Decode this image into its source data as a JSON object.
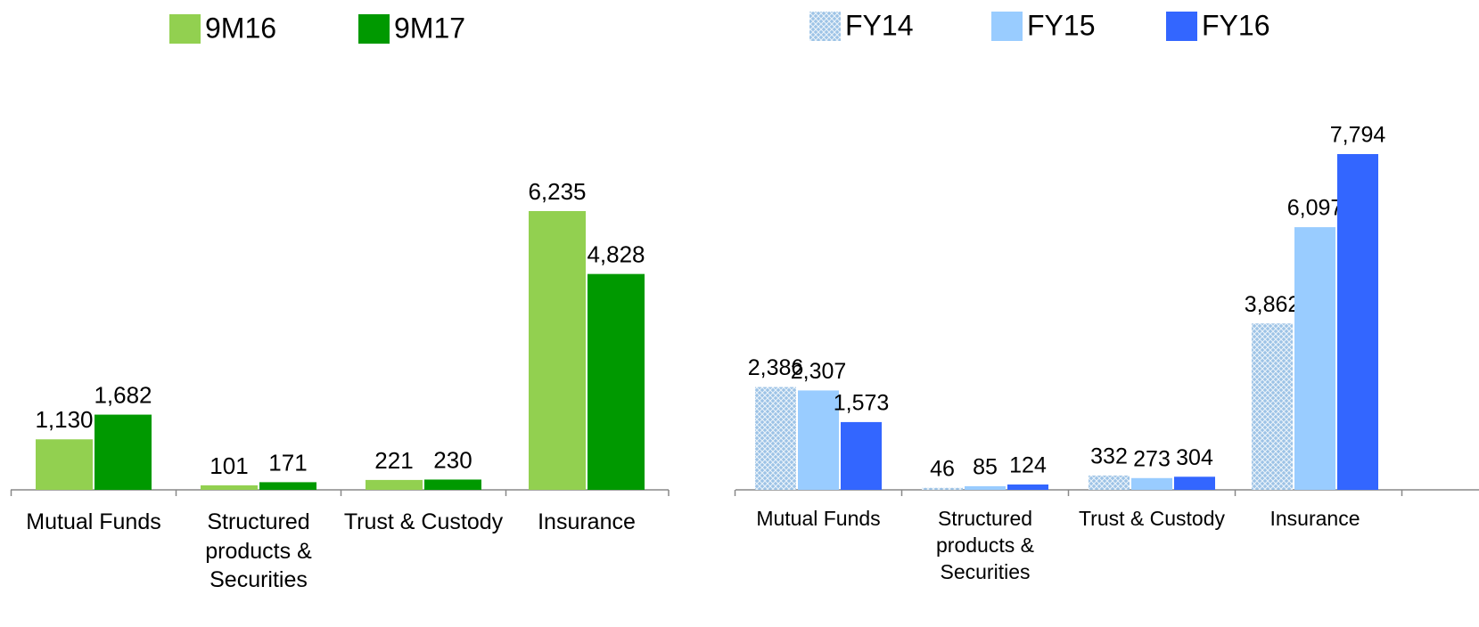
{
  "chart_data": [
    {
      "type": "bar",
      "categories": [
        "Mutual Funds",
        "Structured products & Securities",
        "Trust & Custody",
        "Insurance"
      ],
      "series": [
        {
          "name": "9M16",
          "color": "#92d050",
          "values": [
            1130,
            101,
            221,
            6235
          ],
          "value_labels": [
            "1,130",
            "101",
            "221",
            "6,235"
          ]
        },
        {
          "name": "9M17",
          "color": "#009900",
          "values": [
            1682,
            171,
            230,
            4828
          ],
          "value_labels": [
            "1,682",
            "171",
            "230",
            "4,828"
          ]
        }
      ]
    },
    {
      "type": "bar",
      "categories": [
        "Mutual Funds",
        "Structured products & Securities",
        "Trust & Custody",
        "Insurance"
      ],
      "series": [
        {
          "name": "FY14",
          "color": "#9dc3e6",
          "pattern": "crosshatch",
          "values": [
            2386,
            46,
            332,
            3862
          ],
          "value_labels": [
            "2,386",
            "46",
            "332",
            "3,862"
          ]
        },
        {
          "name": "FY15",
          "color": "#99ccff",
          "values": [
            2307,
            85,
            273,
            6097
          ],
          "value_labels": [
            "2,307",
            "85",
            "273",
            "6,097"
          ]
        },
        {
          "name": "FY16",
          "color": "#3366ff",
          "values": [
            1573,
            124,
            304,
            7794
          ],
          "value_labels": [
            "1,573",
            "124",
            "304",
            "7,794"
          ]
        }
      ]
    }
  ]
}
